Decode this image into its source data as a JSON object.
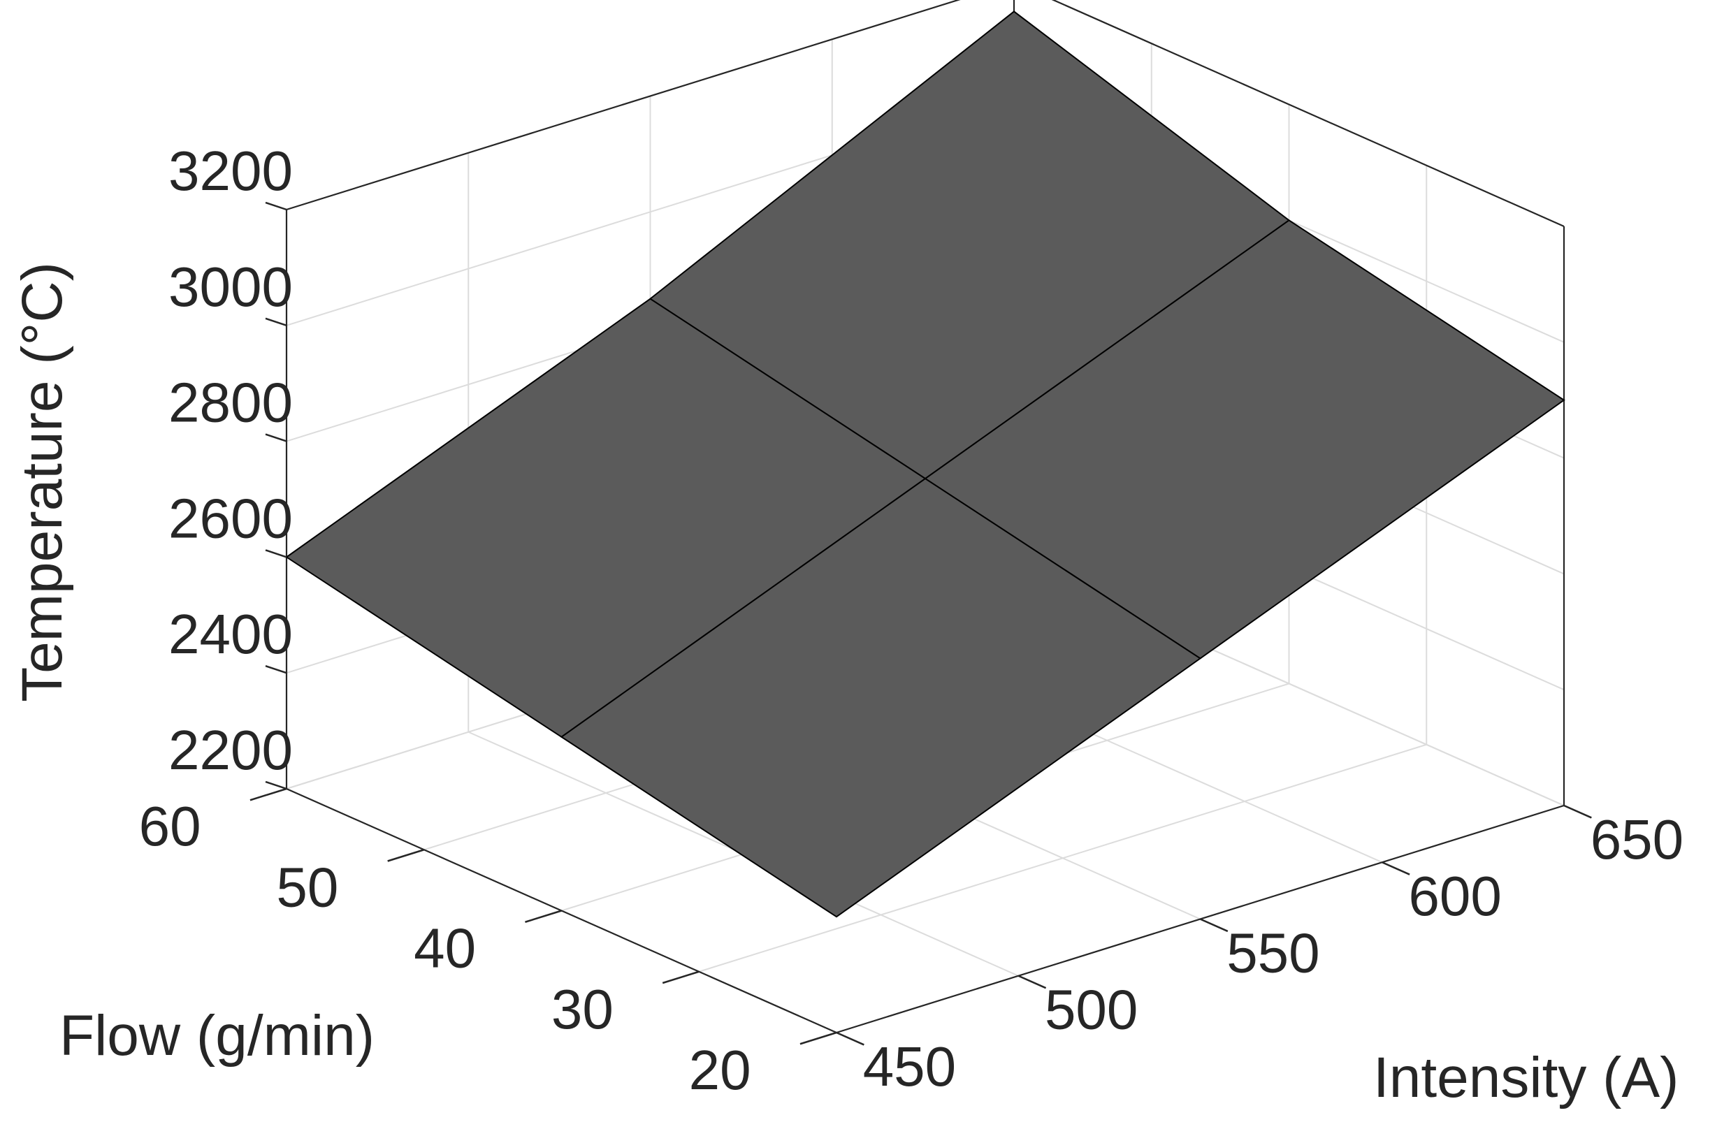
{
  "chart_data": {
    "type": "surface",
    "title": "",
    "xlabel": "Intensity (A)",
    "ylabel": "Flow (g/min)",
    "zlabel": "Temperature (°C)",
    "x_ticks": [
      "450",
      "500",
      "550",
      "600",
      "650"
    ],
    "y_ticks": [
      "20",
      "30",
      "40",
      "50",
      "60"
    ],
    "z_ticks": [
      "2200",
      "2400",
      "2600",
      "2800",
      "3000",
      "3200"
    ],
    "xlim": [
      450,
      650
    ],
    "ylim": [
      20,
      60
    ],
    "zlim": [
      2200,
      3200
    ],
    "grid": true,
    "surface_color": "#5b5b5b",
    "edge_color": "#000000",
    "x": [
      450,
      550,
      650
    ],
    "y": [
      20,
      40,
      60
    ],
    "z": [
      [
        2400,
        2650,
        2900
      ],
      [
        2500,
        2750,
        3000
      ],
      [
        2600,
        2850,
        3150
      ]
    ]
  }
}
